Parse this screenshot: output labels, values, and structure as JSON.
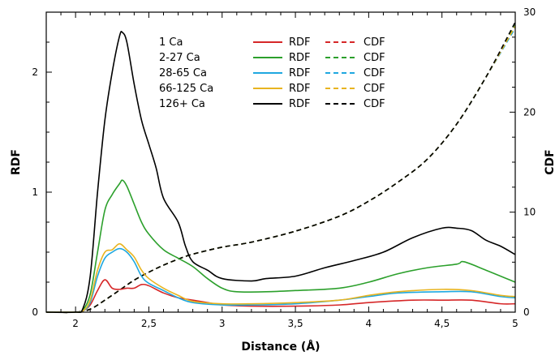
{
  "chart_data": {
    "type": "line",
    "xlabel": "Distance (Å)",
    "ylabel_left": "RDF",
    "ylabel_right": "CDF",
    "xlim": [
      1.8,
      5.0
    ],
    "ylim_left": [
      0,
      2.5
    ],
    "ylim_right": [
      0,
      30
    ],
    "x_ticks": [
      {
        "v": 2.0,
        "label": "2"
      },
      {
        "v": 2.5,
        "label": "2,5"
      },
      {
        "v": 3.0,
        "label": "3"
      },
      {
        "v": 3.5,
        "label": "3,5"
      },
      {
        "v": 4.0,
        "label": "4"
      },
      {
        "v": 4.5,
        "label": "4,5"
      },
      {
        "v": 5.0,
        "label": "5"
      }
    ],
    "y_left_ticks": [
      {
        "v": 0,
        "label": "0"
      },
      {
        "v": 1,
        "label": "1"
      },
      {
        "v": 2,
        "label": "2"
      }
    ],
    "y_right_ticks": [
      {
        "v": 0,
        "label": "0"
      },
      {
        "v": 10,
        "label": "10"
      },
      {
        "v": 20,
        "label": "20"
      },
      {
        "v": 30,
        "label": "30"
      }
    ],
    "grid": false,
    "legend_position": "top-center",
    "groups": [
      {
        "label": "1 Ca",
        "color": "#d62728",
        "rdf_name": "RDF",
        "cdf_name": "CDF",
        "rdf": [
          [
            1.8,
            0
          ],
          [
            2.0,
            0
          ],
          [
            2.05,
            0.01
          ],
          [
            2.1,
            0.06
          ],
          [
            2.15,
            0.18
          ],
          [
            2.2,
            0.27
          ],
          [
            2.25,
            0.2
          ],
          [
            2.3,
            0.19
          ],
          [
            2.35,
            0.2
          ],
          [
            2.4,
            0.2
          ],
          [
            2.45,
            0.23
          ],
          [
            2.5,
            0.22
          ],
          [
            2.6,
            0.16
          ],
          [
            2.7,
            0.12
          ],
          [
            2.8,
            0.1
          ],
          [
            2.9,
            0.08
          ],
          [
            3.0,
            0.06
          ],
          [
            3.2,
            0.05
          ],
          [
            3.5,
            0.05
          ],
          [
            3.8,
            0.06
          ],
          [
            4.0,
            0.08
          ],
          [
            4.3,
            0.1
          ],
          [
            4.5,
            0.1
          ],
          [
            4.7,
            0.1
          ],
          [
            4.9,
            0.07
          ],
          [
            5.0,
            0.07
          ]
        ],
        "cdf": [
          [
            1.8,
            0
          ],
          [
            2.0,
            0
          ],
          [
            2.1,
            0.3
          ],
          [
            2.2,
            1.2
          ],
          [
            2.3,
            2.2
          ],
          [
            2.4,
            3.2
          ],
          [
            2.5,
            4.0
          ],
          [
            2.6,
            4.7
          ],
          [
            2.7,
            5.3
          ],
          [
            2.8,
            5.8
          ],
          [
            3.0,
            6.5
          ],
          [
            3.2,
            7.0
          ],
          [
            3.5,
            8.1
          ],
          [
            3.8,
            9.6
          ],
          [
            4.0,
            11.1
          ],
          [
            4.2,
            13.0
          ],
          [
            4.4,
            15.3
          ],
          [
            4.6,
            18.8
          ],
          [
            4.8,
            23.5
          ],
          [
            5.0,
            28.5
          ]
        ]
      },
      {
        "label": "2-27 Ca",
        "color": "#2ca02c",
        "rdf_name": "RDF",
        "cdf_name": "CDF",
        "rdf": [
          [
            1.8,
            0
          ],
          [
            2.0,
            0
          ],
          [
            2.05,
            0.02
          ],
          [
            2.1,
            0.15
          ],
          [
            2.15,
            0.5
          ],
          [
            2.2,
            0.85
          ],
          [
            2.25,
            0.98
          ],
          [
            2.3,
            1.07
          ],
          [
            2.32,
            1.1
          ],
          [
            2.35,
            1.05
          ],
          [
            2.4,
            0.9
          ],
          [
            2.45,
            0.75
          ],
          [
            2.5,
            0.65
          ],
          [
            2.6,
            0.52
          ],
          [
            2.7,
            0.45
          ],
          [
            2.8,
            0.38
          ],
          [
            2.9,
            0.28
          ],
          [
            3.0,
            0.2
          ],
          [
            3.1,
            0.17
          ],
          [
            3.3,
            0.17
          ],
          [
            3.5,
            0.18
          ],
          [
            3.8,
            0.2
          ],
          [
            4.0,
            0.25
          ],
          [
            4.2,
            0.32
          ],
          [
            4.4,
            0.37
          ],
          [
            4.6,
            0.4
          ],
          [
            4.65,
            0.42
          ],
          [
            4.8,
            0.35
          ],
          [
            5.0,
            0.25
          ]
        ],
        "cdf": [
          [
            1.8,
            0
          ],
          [
            2.0,
            0
          ],
          [
            2.1,
            0.3
          ],
          [
            2.2,
            1.2
          ],
          [
            2.3,
            2.2
          ],
          [
            2.4,
            3.2
          ],
          [
            2.5,
            4.0
          ],
          [
            2.6,
            4.7
          ],
          [
            2.7,
            5.3
          ],
          [
            2.8,
            5.8
          ],
          [
            3.0,
            6.5
          ],
          [
            3.2,
            7.0
          ],
          [
            3.5,
            8.1
          ],
          [
            3.8,
            9.6
          ],
          [
            4.0,
            11.1
          ],
          [
            4.2,
            13.0
          ],
          [
            4.4,
            15.3
          ],
          [
            4.6,
            18.8
          ],
          [
            4.8,
            23.5
          ],
          [
            5.0,
            28.7
          ]
        ]
      },
      {
        "label": "28-65 Ca",
        "color": "#1fa8e0",
        "rdf_name": "RDF",
        "cdf_name": "CDF",
        "rdf": [
          [
            1.8,
            0
          ],
          [
            2.0,
            0
          ],
          [
            2.05,
            0.01
          ],
          [
            2.1,
            0.08
          ],
          [
            2.15,
            0.3
          ],
          [
            2.2,
            0.45
          ],
          [
            2.25,
            0.5
          ],
          [
            2.3,
            0.53
          ],
          [
            2.35,
            0.5
          ],
          [
            2.4,
            0.42
          ],
          [
            2.45,
            0.3
          ],
          [
            2.5,
            0.24
          ],
          [
            2.6,
            0.18
          ],
          [
            2.7,
            0.12
          ],
          [
            2.8,
            0.08
          ],
          [
            3.0,
            0.06
          ],
          [
            3.2,
            0.06
          ],
          [
            3.5,
            0.07
          ],
          [
            3.8,
            0.1
          ],
          [
            4.0,
            0.13
          ],
          [
            4.2,
            0.16
          ],
          [
            4.5,
            0.17
          ],
          [
            4.7,
            0.17
          ],
          [
            4.9,
            0.13
          ],
          [
            5.0,
            0.12
          ]
        ],
        "cdf": [
          [
            1.8,
            0
          ],
          [
            2.0,
            0
          ],
          [
            2.1,
            0.3
          ],
          [
            2.2,
            1.2
          ],
          [
            2.3,
            2.2
          ],
          [
            2.4,
            3.2
          ],
          [
            2.5,
            4.0
          ],
          [
            2.6,
            4.7
          ],
          [
            2.7,
            5.3
          ],
          [
            2.8,
            5.8
          ],
          [
            3.0,
            6.5
          ],
          [
            3.2,
            7.0
          ],
          [
            3.5,
            8.1
          ],
          [
            3.8,
            9.6
          ],
          [
            4.0,
            11.1
          ],
          [
            4.2,
            13.0
          ],
          [
            4.4,
            15.3
          ],
          [
            4.6,
            18.8
          ],
          [
            4.8,
            23.5
          ],
          [
            5.0,
            28.4
          ]
        ]
      },
      {
        "label": "66-125 Ca",
        "color": "#e8b420",
        "rdf_name": "RDF",
        "cdf_name": "CDF",
        "rdf": [
          [
            1.8,
            0
          ],
          [
            2.0,
            0
          ],
          [
            2.05,
            0.01
          ],
          [
            2.1,
            0.1
          ],
          [
            2.15,
            0.35
          ],
          [
            2.2,
            0.5
          ],
          [
            2.25,
            0.52
          ],
          [
            2.3,
            0.57
          ],
          [
            2.35,
            0.52
          ],
          [
            2.4,
            0.46
          ],
          [
            2.45,
            0.35
          ],
          [
            2.5,
            0.28
          ],
          [
            2.6,
            0.2
          ],
          [
            2.7,
            0.14
          ],
          [
            2.8,
            0.09
          ],
          [
            3.0,
            0.07
          ],
          [
            3.2,
            0.07
          ],
          [
            3.5,
            0.08
          ],
          [
            3.8,
            0.1
          ],
          [
            4.0,
            0.14
          ],
          [
            4.2,
            0.17
          ],
          [
            4.5,
            0.19
          ],
          [
            4.7,
            0.18
          ],
          [
            4.9,
            0.14
          ],
          [
            5.0,
            0.13
          ]
        ],
        "cdf": [
          [
            1.8,
            0
          ],
          [
            2.0,
            0
          ],
          [
            2.1,
            0.3
          ],
          [
            2.2,
            1.2
          ],
          [
            2.3,
            2.2
          ],
          [
            2.4,
            3.2
          ],
          [
            2.5,
            4.0
          ],
          [
            2.6,
            4.7
          ],
          [
            2.7,
            5.3
          ],
          [
            2.8,
            5.8
          ],
          [
            3.0,
            6.5
          ],
          [
            3.2,
            7.0
          ],
          [
            3.5,
            8.1
          ],
          [
            3.8,
            9.6
          ],
          [
            4.0,
            11.1
          ],
          [
            4.2,
            13.0
          ],
          [
            4.4,
            15.3
          ],
          [
            4.6,
            18.8
          ],
          [
            4.8,
            23.5
          ],
          [
            5.0,
            28.6
          ]
        ]
      },
      {
        "label": "126+ Ca",
        "color": "#000000",
        "rdf_name": "RDF",
        "cdf_name": "CDF",
        "rdf": [
          [
            1.8,
            0
          ],
          [
            2.0,
            0
          ],
          [
            2.05,
            0.03
          ],
          [
            2.1,
            0.3
          ],
          [
            2.15,
            1.0
          ],
          [
            2.2,
            1.6
          ],
          [
            2.25,
            2.0
          ],
          [
            2.3,
            2.3
          ],
          [
            2.32,
            2.33
          ],
          [
            2.35,
            2.25
          ],
          [
            2.4,
            1.9
          ],
          [
            2.45,
            1.6
          ],
          [
            2.5,
            1.4
          ],
          [
            2.55,
            1.2
          ],
          [
            2.6,
            0.95
          ],
          [
            2.7,
            0.75
          ],
          [
            2.75,
            0.55
          ],
          [
            2.8,
            0.42
          ],
          [
            2.9,
            0.35
          ],
          [
            3.0,
            0.28
          ],
          [
            3.2,
            0.26
          ],
          [
            3.3,
            0.28
          ],
          [
            3.5,
            0.3
          ],
          [
            3.7,
            0.37
          ],
          [
            3.9,
            0.43
          ],
          [
            4.1,
            0.5
          ],
          [
            4.3,
            0.62
          ],
          [
            4.5,
            0.7
          ],
          [
            4.6,
            0.7
          ],
          [
            4.7,
            0.68
          ],
          [
            4.8,
            0.6
          ],
          [
            4.9,
            0.55
          ],
          [
            5.0,
            0.48
          ]
        ],
        "cdf": [
          [
            1.8,
            0
          ],
          [
            2.0,
            0
          ],
          [
            2.1,
            0.3
          ],
          [
            2.2,
            1.2
          ],
          [
            2.3,
            2.2
          ],
          [
            2.4,
            3.2
          ],
          [
            2.5,
            4.0
          ],
          [
            2.6,
            4.7
          ],
          [
            2.7,
            5.3
          ],
          [
            2.8,
            5.8
          ],
          [
            3.0,
            6.5
          ],
          [
            3.2,
            7.0
          ],
          [
            3.5,
            8.1
          ],
          [
            3.8,
            9.6
          ],
          [
            4.0,
            11.1
          ],
          [
            4.2,
            13.0
          ],
          [
            4.4,
            15.3
          ],
          [
            4.6,
            18.8
          ],
          [
            4.8,
            23.5
          ],
          [
            5.0,
            29.0
          ]
        ]
      }
    ]
  }
}
